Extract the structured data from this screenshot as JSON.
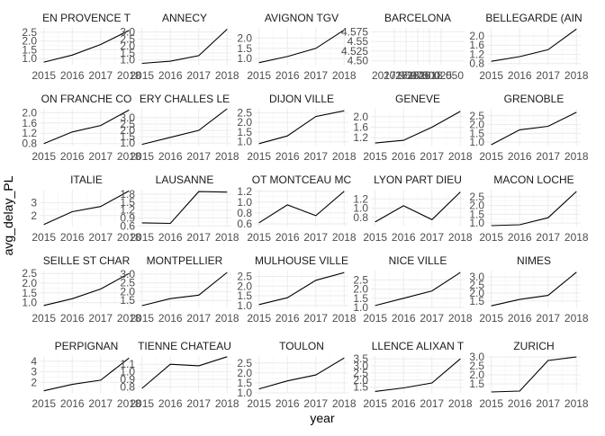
{
  "chart_data": {
    "type": "line",
    "facet": "small-multiples",
    "ncol": 5,
    "xlabel": "year",
    "ylabel": "avg_delay_PL",
    "x": [
      2015,
      2016,
      2017,
      2018
    ],
    "x_ticks": [
      "2015",
      "2016",
      "2017",
      "2018"
    ],
    "grid": true,
    "line_color": "#000000",
    "grid_color": "#ebebeb",
    "panels": [
      {
        "title": "EN PROVENCE T",
        "values": [
          0.8,
          1.2,
          1.8,
          2.6
        ],
        "ylim": [
          0.65,
          2.75
        ],
        "y_ticks": [
          "1.0",
          "1.5",
          "2.0",
          "2.5"
        ],
        "y_tick_values": [
          1.0,
          1.5,
          2.0,
          2.5
        ]
      },
      {
        "title": "ANNECY",
        "values": [
          0.75,
          0.9,
          1.3,
          3.2
        ],
        "ylim": [
          0.65,
          3.3
        ],
        "y_ticks": [
          "1.0",
          "1.5",
          "2.0",
          "2.5",
          "3.0"
        ],
        "y_tick_values": [
          1.0,
          1.5,
          2.0,
          2.5,
          3.0
        ]
      },
      {
        "title": "AVIGNON TGV",
        "values": [
          0.8,
          1.1,
          1.5,
          2.4
        ],
        "ylim": [
          0.7,
          2.5
        ],
        "y_ticks": [
          "1.0",
          "1.5",
          "2.0"
        ],
        "y_tick_values": [
          1.0,
          1.5,
          2.0
        ]
      },
      {
        "title": "BARCELONA",
        "values": [],
        "xlim": [
          2017.9,
          2018.1
        ],
        "ylim": [
          4.49,
          4.585
        ],
        "y_ticks": [
          "4.50",
          "4.525",
          "4.55",
          "4.575"
        ],
        "y_tick_values": [
          4.5,
          4.525,
          4.55,
          4.575
        ],
        "x_ticks": [
          "2017.950",
          "2017.975",
          "2018.000",
          "2018.025",
          "2018.050"
        ],
        "x_tick_values": [
          2017.95,
          2017.975,
          2018.0,
          2018.025,
          2018.05
        ]
      },
      {
        "title": "BELLEGARDE (AIN",
        "values": [
          0.9,
          1.1,
          1.4,
          2.3
        ],
        "ylim": [
          0.75,
          2.35
        ],
        "y_ticks": [
          "0.8",
          "1.2",
          "1.6",
          "2.0"
        ],
        "y_tick_values": [
          0.8,
          1.2,
          1.6,
          2.0
        ]
      },
      {
        "title": "ON FRANCHE CO",
        "values": [
          0.8,
          1.25,
          1.5,
          2.1
        ],
        "ylim": [
          0.72,
          2.15
        ],
        "y_ticks": [
          "0.8",
          "1.2",
          "1.6",
          "2.0"
        ],
        "y_tick_values": [
          0.8,
          1.2,
          1.6,
          2.0
        ]
      },
      {
        "title": "ERY CHALLES LE",
        "values": [
          0.9,
          1.45,
          2.0,
          3.7
        ],
        "ylim": [
          0.8,
          3.7
        ],
        "y_ticks": [
          "1.0",
          "1.5",
          "2.0",
          "2.5",
          "3.0"
        ],
        "y_tick_values": [
          1.0,
          1.5,
          2.0,
          2.5,
          3.0
        ]
      },
      {
        "title": "DIJON VILLE",
        "values": [
          0.9,
          1.3,
          2.3,
          2.6
        ],
        "ylim": [
          0.8,
          2.7
        ],
        "y_ticks": [
          "1.0",
          "1.5",
          "2.0",
          "2.5"
        ],
        "y_tick_values": [
          1.0,
          1.5,
          2.0,
          2.5
        ]
      },
      {
        "title": "GENEVE",
        "values": [
          1.0,
          1.1,
          1.6,
          2.2
        ],
        "ylim": [
          0.9,
          2.3
        ],
        "y_ticks": [
          "1.2",
          "1.6",
          "2.0"
        ],
        "y_tick_values": [
          1.2,
          1.6,
          2.0
        ]
      },
      {
        "title": "GRENOBLE",
        "values": [
          0.85,
          1.7,
          1.9,
          2.7
        ],
        "ylim": [
          0.8,
          2.9
        ],
        "y_ticks": [
          "1.0",
          "1.5",
          "2.0",
          "2.5"
        ],
        "y_tick_values": [
          1.0,
          1.5,
          2.0,
          2.5
        ]
      },
      {
        "title": "ITALIE",
        "values": [
          1.3,
          2.3,
          2.7,
          3.9
        ],
        "ylim": [
          1.15,
          4.0
        ],
        "y_ticks": [
          "2",
          "3"
        ],
        "y_tick_values": [
          2,
          3
        ]
      },
      {
        "title": "LAUSANNE",
        "values": [
          0.72,
          0.7,
          1.9,
          1.88
        ],
        "ylim": [
          0.58,
          1.97
        ],
        "y_ticks": [
          "0.6",
          "0.9",
          "1.2",
          "1.5",
          "1.8"
        ],
        "y_tick_values": [
          0.6,
          0.9,
          1.2,
          1.5,
          1.8
        ]
      },
      {
        "title": "OT MONTCEAU MC",
        "values": [
          0.62,
          0.95,
          0.75,
          1.2
        ],
        "ylim": [
          0.55,
          1.23
        ],
        "y_ticks": [
          "0.6",
          "0.8",
          "1.0",
          "1.2"
        ],
        "y_tick_values": [
          0.6,
          0.8,
          1.0,
          1.2
        ]
      },
      {
        "title": "LYON PART DIEU",
        "values": [
          0.7,
          1.05,
          0.75,
          1.35
        ],
        "ylim": [
          0.6,
          1.4
        ],
        "y_ticks": [
          "0.8",
          "1.0",
          "1.2"
        ],
        "y_tick_values": [
          0.8,
          1.0,
          1.2
        ]
      },
      {
        "title": "MACON LOCHE",
        "values": [
          0.85,
          0.9,
          1.3,
          2.8
        ],
        "ylim": [
          0.8,
          2.9
        ],
        "y_ticks": [
          "1.0",
          "1.5",
          "2.0",
          "2.5"
        ],
        "y_tick_values": [
          1.0,
          1.5,
          2.0,
          2.5
        ]
      },
      {
        "title": "SEILLE ST CHAR",
        "values": [
          0.85,
          1.2,
          1.7,
          2.5
        ],
        "ylim": [
          0.75,
          2.65
        ],
        "y_ticks": [
          "1.0",
          "1.5",
          "2.0",
          "2.5"
        ],
        "y_tick_values": [
          1.0,
          1.5,
          2.0,
          2.5
        ]
      },
      {
        "title": "MONTPELLIER",
        "values": [
          1.2,
          1.6,
          1.8,
          3.1
        ],
        "ylim": [
          1.1,
          3.2
        ],
        "y_ticks": [
          "1.5",
          "2.0",
          "2.5",
          "3.0"
        ],
        "y_tick_values": [
          1.5,
          2.0,
          2.5,
          3.0
        ]
      },
      {
        "title": "MULHOUSE VILLE",
        "values": [
          1.05,
          1.4,
          2.3,
          2.7
        ],
        "ylim": [
          0.9,
          2.8
        ],
        "y_ticks": [
          "1.0",
          "1.5",
          "2.0",
          "2.5"
        ],
        "y_tick_values": [
          1.0,
          1.5,
          2.0,
          2.5
        ]
      },
      {
        "title": "NICE VILLE",
        "values": [
          1.1,
          1.5,
          1.9,
          2.9
        ],
        "ylim": [
          1.0,
          3.0
        ],
        "y_ticks": [
          "1.0",
          "1.5",
          "2.0",
          "2.5"
        ],
        "y_tick_values": [
          1.0,
          1.5,
          2.0,
          2.5
        ]
      },
      {
        "title": "NIMES",
        "values": [
          1.2,
          1.6,
          1.85,
          3.3
        ],
        "ylim": [
          1.1,
          3.4
        ],
        "y_ticks": [
          "1.5",
          "2.0",
          "2.5",
          "3.0"
        ],
        "y_tick_values": [
          1.5,
          2.0,
          2.5,
          3.0
        ]
      },
      {
        "title": "PERPIGNAN",
        "values": [
          1.2,
          1.8,
          2.2,
          4.3
        ],
        "ylim": [
          1.0,
          4.5
        ],
        "y_ticks": [
          "2",
          "3",
          "4"
        ],
        "y_tick_values": [
          2,
          3,
          4
        ]
      },
      {
        "title": "TIENNE CHATEAU",
        "values": [
          0.78,
          1.1,
          1.08,
          1.2
        ],
        "ylim": [
          0.72,
          1.21
        ],
        "y_ticks": [
          "0.8",
          "0.9",
          "1.0",
          "1.1"
        ],
        "y_tick_values": [
          0.8,
          0.9,
          1.0,
          1.1
        ]
      },
      {
        "title": "TOULON",
        "values": [
          1.2,
          1.6,
          1.9,
          2.75
        ],
        "ylim": [
          1.0,
          2.85
        ],
        "y_ticks": [
          "1.0",
          "1.5",
          "2.0",
          "2.5"
        ],
        "y_tick_values": [
          1.0,
          1.5,
          2.0,
          2.5
        ]
      },
      {
        "title": "LLENCE ALIXAN T",
        "values": [
          1.2,
          1.45,
          1.8,
          3.5
        ],
        "ylim": [
          1.1,
          3.7
        ],
        "y_ticks": [
          "1.5",
          "2.0",
          "2.5",
          "3.0",
          "3.5"
        ],
        "y_tick_values": [
          1.5,
          2.0,
          2.5,
          3.0,
          3.5
        ]
      },
      {
        "title": "ZURICH",
        "values": [
          1.05,
          1.1,
          2.8,
          3.0
        ],
        "ylim": [
          1.0,
          3.05
        ],
        "y_ticks": [
          "1.5",
          "2.0",
          "2.5",
          "3.0"
        ],
        "y_tick_values": [
          1.5,
          2.0,
          2.5,
          3.0
        ]
      }
    ]
  }
}
